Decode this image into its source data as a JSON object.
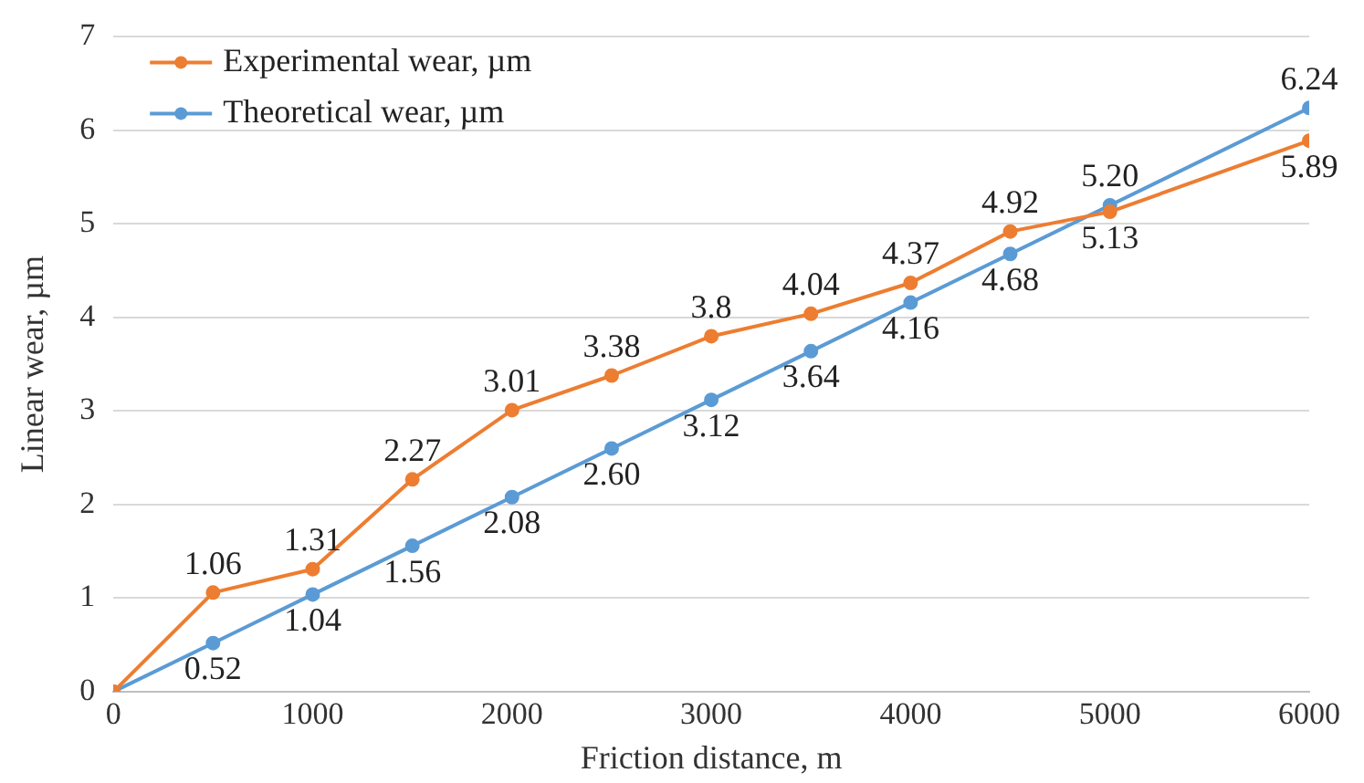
{
  "chart_data": {
    "type": "line",
    "xlabel": "Friction distance, m",
    "ylabel": "Linear wear, µm",
    "xlim": [
      0,
      6000
    ],
    "xticks": [
      0,
      1000,
      2000,
      3000,
      4000,
      5000,
      6000
    ],
    "ylim": [
      0,
      7
    ],
    "yticks": [
      0,
      1,
      2,
      3,
      4,
      5,
      6,
      7
    ],
    "grid": "y",
    "legend": "top left",
    "marker": "circle",
    "line_style": "solid",
    "series": [
      {
        "name": "Experimental wear, µm",
        "color": "#ed7d31",
        "x": [
          0,
          500,
          1000,
          1500,
          2000,
          2500,
          3000,
          3500,
          4000,
          4500,
          5000,
          6000
        ],
        "values": [
          0,
          1.06,
          1.31,
          2.27,
          3.01,
          3.38,
          3.8,
          4.04,
          4.37,
          4.92,
          5.13,
          5.89
        ],
        "value_labels": [
          null,
          "1.06",
          "1.31",
          "2.27",
          "3.01",
          "3.38",
          "3.8",
          "4.04",
          "4.37",
          "4.92",
          "5.13",
          "5.89"
        ]
      },
      {
        "name": "Theoretical wear, µm",
        "color": "#5b9bd5",
        "x": [
          0,
          500,
          1000,
          1500,
          2000,
          2500,
          3000,
          3500,
          4000,
          4500,
          5000,
          6000
        ],
        "values": [
          0,
          0.52,
          1.04,
          1.56,
          2.08,
          2.6,
          3.12,
          3.64,
          4.16,
          4.68,
          5.2,
          6.24
        ],
        "value_labels": [
          null,
          "0.52",
          "1.04",
          "1.56",
          "2.08",
          "2.60",
          "3.12",
          "3.64",
          "4.16",
          "4.68",
          "5.20",
          "6.24"
        ]
      }
    ]
  }
}
